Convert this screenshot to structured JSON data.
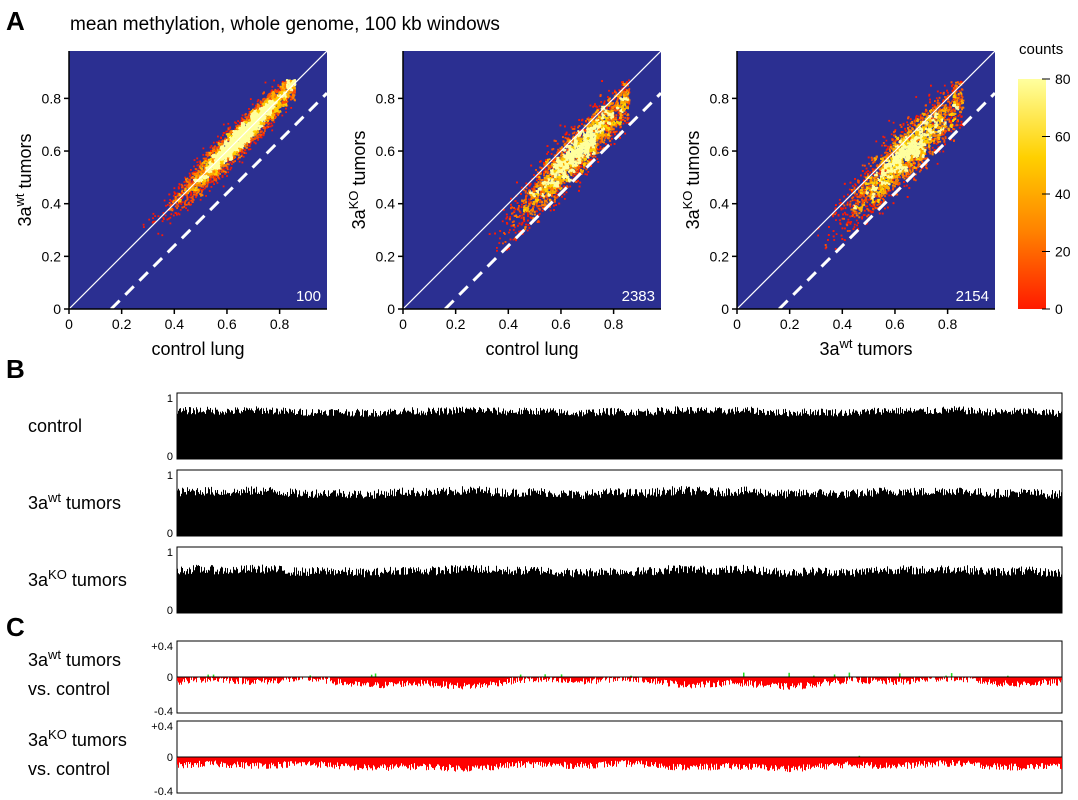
{
  "panel_letters": {
    "a": "A",
    "b": "B",
    "c": "C"
  },
  "panel_a": {
    "title": "mean methylation, whole genome, 100 kb windows",
    "colorbar": {
      "title": "counts",
      "ticks": [
        "0",
        "20",
        "40",
        "60",
        "80"
      ],
      "range": [
        0,
        80
      ],
      "colors": [
        "#ff1a00",
        "#ff8000",
        "#ffd000",
        "#ffff9e"
      ]
    },
    "background_color": "#2b2f91",
    "axis_ticks": [
      "0",
      "0.2",
      "0.4",
      "0.6",
      "0.8"
    ],
    "axis_tick_values": [
      0,
      0.2,
      0.4,
      0.6,
      0.8
    ],
    "axis_range": [
      0,
      1
    ]
  },
  "chart_data": [
    {
      "type": "heatmap",
      "panel": "A-left",
      "xlabel": "control lung",
      "ylabel": {
        "base": "3a",
        "sup": "wt",
        "rest": " tumors"
      },
      "count_label": "100",
      "xlim": [
        0,
        1
      ],
      "ylim": [
        0,
        1
      ],
      "diagonal": {
        "slope": 1,
        "intercept": 0
      },
      "dashed_line": {
        "slope": 1,
        "intercept": -0.16
      },
      "cloud": {
        "x_mean": 0.65,
        "slope": 1.0,
        "intercept": 0.0,
        "x_sd": 0.11,
        "noise_sd": 0.03,
        "x_min": 0.28,
        "x_max": 0.86
      }
    },
    {
      "type": "heatmap",
      "panel": "A-middle",
      "xlabel": "control lung",
      "ylabel": {
        "base": "3a",
        "sup": "KO",
        "rest": " tumors"
      },
      "count_label": "2383",
      "xlim": [
        0,
        1
      ],
      "ylim": [
        0,
        1
      ],
      "diagonal": {
        "slope": 1,
        "intercept": 0
      },
      "dashed_line": {
        "slope": 1,
        "intercept": -0.16
      },
      "cloud": {
        "x_mean": 0.66,
        "slope": 1.05,
        "intercept": -0.1,
        "x_sd": 0.11,
        "noise_sd": 0.045,
        "x_min": 0.3,
        "x_max": 0.86
      }
    },
    {
      "type": "heatmap",
      "panel": "A-right",
      "xlabel": {
        "base": "3a",
        "sup": "wt",
        "rest": " tumors"
      },
      "ylabel": {
        "base": "3a",
        "sup": "KO",
        "rest": " tumors"
      },
      "count_label": "2154",
      "xlim": [
        0,
        1
      ],
      "ylim": [
        0,
        1
      ],
      "diagonal": {
        "slope": 1,
        "intercept": 0
      },
      "dashed_line": {
        "slope": 1,
        "intercept": -0.16
      },
      "cloud": {
        "x_mean": 0.64,
        "slope": 0.98,
        "intercept": -0.04,
        "x_sd": 0.11,
        "noise_sd": 0.05,
        "x_min": 0.3,
        "x_max": 0.86
      }
    },
    {
      "type": "bar",
      "panel": "B-control",
      "label": {
        "base": "control",
        "sup": "",
        "rest": ""
      },
      "ylim": [
        0,
        1
      ],
      "ytick_top": "1",
      "ytick_bottom": "0",
      "color": "#000000",
      "profile": {
        "mean": 0.72,
        "noise": 0.06,
        "wave": 0.03
      }
    },
    {
      "type": "bar",
      "panel": "B-3awt",
      "label": {
        "base": "3a",
        "sup": "wt",
        "rest": " tumors"
      },
      "ylim": [
        0,
        1
      ],
      "ytick_top": "1",
      "ytick_bottom": "0",
      "color": "#000000",
      "profile": {
        "mean": 0.66,
        "noise": 0.07,
        "wave": 0.04
      }
    },
    {
      "type": "bar",
      "panel": "B-3aKO",
      "label": {
        "base": "3a",
        "sup": "KO",
        "rest": " tumors"
      },
      "ylim": [
        0,
        1
      ],
      "ytick_top": "1",
      "ytick_bottom": "0",
      "color": "#000000",
      "profile": {
        "mean": 0.64,
        "noise": 0.07,
        "wave": 0.04
      }
    },
    {
      "type": "bar",
      "panel": "C-3awt",
      "label_line1": {
        "base": "3a",
        "sup": "wt",
        "rest": " tumors"
      },
      "label_line2": "vs. control",
      "ylim": [
        -0.4,
        0.4
      ],
      "ytick_top": "+0.4",
      "ytick_mid": "0",
      "ytick_bottom": "-0.4",
      "neg_color": "#ff0000",
      "pos_color": "#22dd22",
      "profile": {
        "mean": -0.06,
        "noise": 0.04,
        "wave": 0.05,
        "pos_spikes": 18
      }
    },
    {
      "type": "bar",
      "panel": "C-3aKO",
      "label_line1": {
        "base": "3a",
        "sup": "KO",
        "rest": " tumors"
      },
      "label_line2": "vs. control",
      "ylim": [
        -0.4,
        0.4
      ],
      "ytick_top": "+0.4",
      "ytick_mid": "0",
      "ytick_bottom": "-0.4",
      "neg_color": "#ff0000",
      "pos_color": "#22dd22",
      "profile": {
        "mean": -0.1,
        "noise": 0.04,
        "wave": 0.03,
        "pos_spikes": 1
      }
    }
  ]
}
